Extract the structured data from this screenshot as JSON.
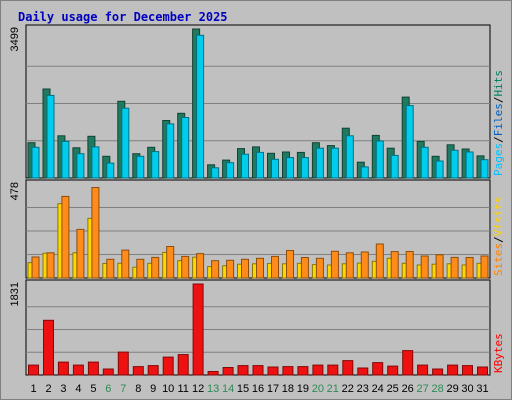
{
  "chart_data": {
    "type": "bar",
    "title": "Daily usage for December 2025",
    "categories": [
      "1",
      "2",
      "3",
      "4",
      "5",
      "6",
      "7",
      "8",
      "9",
      "10",
      "11",
      "12",
      "13",
      "14",
      "15",
      "16",
      "17",
      "18",
      "19",
      "20",
      "21",
      "22",
      "23",
      "24",
      "25",
      "26",
      "27",
      "28",
      "29",
      "30",
      "31"
    ],
    "weekend_days": [
      "6",
      "7",
      "13",
      "14",
      "20",
      "21",
      "27",
      "28"
    ],
    "weekday_label_color": "#000000",
    "weekend_label_color": "#2e8b57",
    "panels": [
      {
        "id": "pages_files_hits",
        "ymax_label": "3499",
        "ymax": 3499,
        "grid": true,
        "legend": [
          {
            "text": "Pages",
            "color": "#00c0ff"
          },
          {
            "text": "/",
            "color": "#000000"
          },
          {
            "text": "Files",
            "color": "#0060c0"
          },
          {
            "text": "/",
            "color": "#000000"
          },
          {
            "text": "Hits",
            "color": "#008060"
          }
        ],
        "series": [
          {
            "name": "Hits",
            "color": "#1f7a60",
            "values": [
              830,
              2090,
              990,
              710,
              980,
              510,
              1800,
              570,
              720,
              1350,
              1520,
              3499,
              310,
              420,
              690,
              730,
              580,
              610,
              600,
              830,
              760,
              1170,
              370,
              1000,
              700,
              1900,
              860,
              510,
              780,
              680,
              520
            ]
          },
          {
            "name": "Files",
            "color": "#00ccee",
            "values": [
              720,
              1940,
              860,
              570,
              730,
              350,
              1640,
              510,
              620,
              1270,
              1420,
              3350,
              240,
              360,
              560,
              600,
              440,
              480,
              480,
              700,
              700,
              990,
              260,
              870,
              530,
              1700,
              720,
              400,
              650,
              610,
              430
            ]
          }
        ]
      },
      {
        "id": "visits_sites",
        "ymax_label": "478",
        "ymax": 478,
        "grid": true,
        "legend": [
          {
            "text": "Sites",
            "color": "#ff8000"
          },
          {
            "text": "/",
            "color": "#000000"
          },
          {
            "text": "Visits",
            "color": "#ffd000"
          }
        ],
        "series": [
          {
            "name": "Visits",
            "color": "#ffd700",
            "values": [
              78,
              126,
              378,
              128,
              303,
              74,
              75,
              55,
              75,
              130,
              88,
              106,
              58,
              62,
              70,
              72,
              74,
              72,
              75,
              68,
              66,
              72,
              76,
              85,
              100,
              75,
              66,
              70,
              72,
              66,
              75
            ]
          },
          {
            "name": "Sites",
            "color": "#ff8c1a",
            "values": [
              107,
              128,
              415,
              247,
              460,
              95,
              142,
              95,
              105,
              160,
              110,
              124,
              88,
              90,
              95,
              100,
              110,
              140,
              104,
              100,
              136,
              128,
              132,
              173,
              134,
              135,
              112,
              118,
              105,
              104,
              112
            ]
          }
        ]
      },
      {
        "id": "kbytes",
        "ymax_label": "1831",
        "ymax": 1831,
        "grid": true,
        "legend": [
          {
            "text": "KBytes",
            "color": "#ff0000"
          }
        ],
        "series": [
          {
            "name": "KBytes",
            "color": "#ee1111",
            "values": [
              200,
              1100,
              260,
              200,
              260,
              120,
              460,
              170,
              190,
              360,
              410,
              1831,
              70,
              150,
              190,
              190,
              160,
              170,
              170,
              200,
              200,
              290,
              140,
              250,
              180,
              490,
              200,
              120,
              200,
              190,
              160
            ]
          }
        ]
      }
    ]
  }
}
